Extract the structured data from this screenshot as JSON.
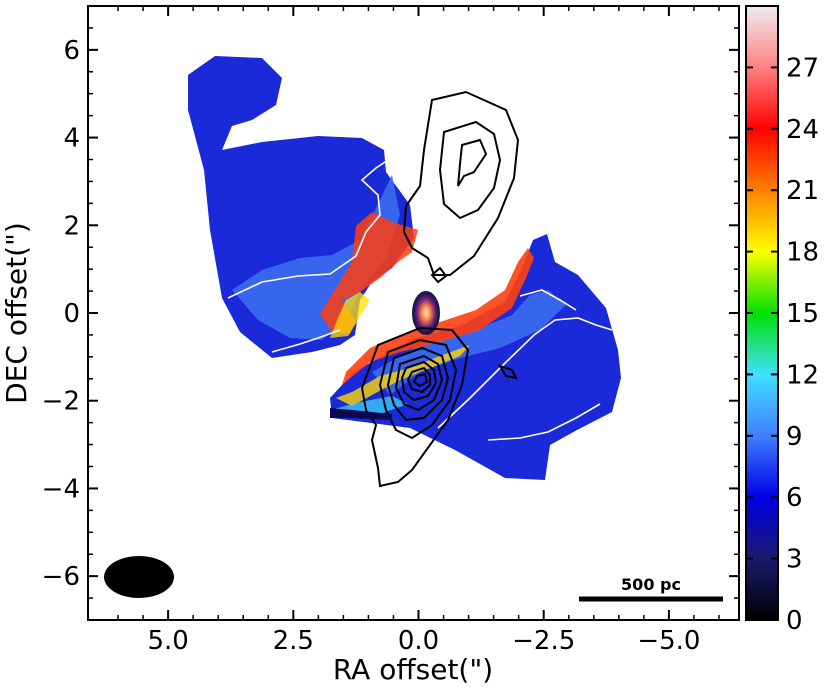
{
  "chart_data": {
    "type": "heatmap",
    "title": "",
    "xlabel": "RA offset(\")",
    "ylabel": "DEC offset(\")",
    "xlim": [
      6.6,
      -6.4
    ],
    "ylim": [
      -7,
      7
    ],
    "x_ticks": [
      {
        "value": -5.0,
        "label": "−5.0"
      },
      {
        "value": -2.5,
        "label": "−2.5"
      },
      {
        "value": 0.0,
        "label": "0.0"
      },
      {
        "value": 2.5,
        "label": "2.5"
      },
      {
        "value": 5.0,
        "label": "5.0"
      }
    ],
    "y_ticks": [
      {
        "value": 6,
        "label": "6"
      },
      {
        "value": 4,
        "label": "4"
      },
      {
        "value": 2,
        "label": "2"
      },
      {
        "value": 0,
        "label": "0"
      },
      {
        "value": -2,
        "label": "−2"
      },
      {
        "value": -4,
        "label": "−4"
      },
      {
        "value": -6,
        "label": "−6"
      }
    ],
    "colorbar": {
      "range": [
        0,
        30
      ],
      "ticks": [
        {
          "value": 0,
          "label": "0"
        },
        {
          "value": 3,
          "label": "3"
        },
        {
          "value": 6,
          "label": "6"
        },
        {
          "value": 9,
          "label": "9"
        },
        {
          "value": 12,
          "label": "12"
        },
        {
          "value": 15,
          "label": "15"
        },
        {
          "value": 18,
          "label": "18"
        },
        {
          "value": 21,
          "label": "21"
        },
        {
          "value": 24,
          "label": "24"
        },
        {
          "value": 27,
          "label": "27"
        }
      ],
      "colormap": [
        "#000000",
        "#1a1a6e",
        "#0000e6",
        "#3f7fff",
        "#40e0ff",
        "#00e000",
        "#ffff00",
        "#ff8000",
        "#ff0000",
        "#ff8080",
        "#eeeeee"
      ]
    },
    "annotations": {
      "scale_bar": "500 pc",
      "beam": "ellipse"
    }
  }
}
